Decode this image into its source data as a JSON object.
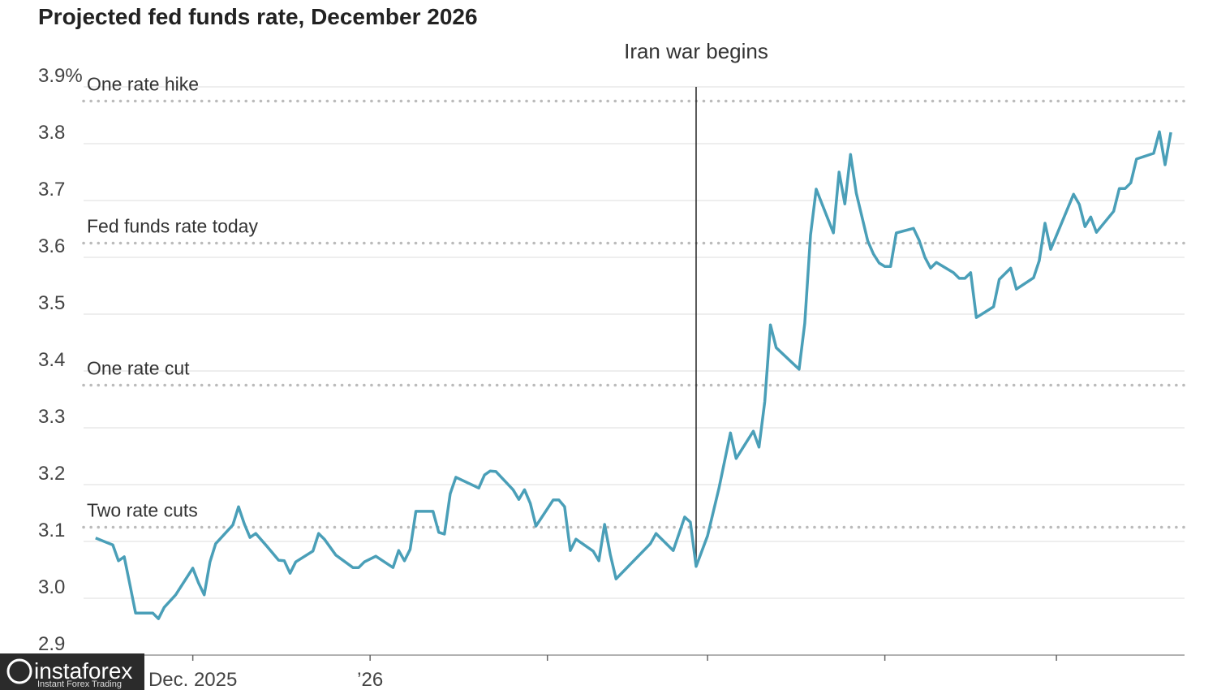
{
  "chart_data": {
    "type": "line",
    "title": "Projected fed funds rate, December 2026",
    "x": [
      -17,
      -14,
      -13,
      -12,
      -11,
      -10,
      -7,
      -6,
      -5,
      -3,
      0,
      1,
      2,
      3,
      4,
      7,
      8,
      9,
      10,
      11,
      13,
      15,
      16,
      17,
      18,
      21,
      22,
      23,
      25,
      28,
      29,
      30,
      32,
      35,
      36,
      37,
      38,
      39,
      42,
      43,
      44,
      45,
      46,
      50,
      51,
      52,
      53,
      56,
      57,
      58,
      59,
      60,
      63,
      64,
      65,
      66,
      67,
      70,
      71,
      72,
      73,
      74,
      80,
      81,
      84,
      86,
      87,
      88,
      90,
      92,
      94,
      95,
      98,
      99,
      100,
      101,
      102,
      106,
      107,
      108,
      109,
      112,
      113,
      114,
      115,
      116,
      118,
      119,
      120,
      121,
      122,
      123,
      126,
      127,
      128,
      129,
      130,
      133,
      134,
      135,
      136,
      137,
      140,
      141,
      143,
      144,
      147,
      148,
      149,
      150,
      154,
      155,
      156,
      157,
      158,
      161,
      162,
      163,
      164,
      165,
      168,
      169,
      170,
      171
    ],
    "series": [
      {
        "color": "#4a9fb8",
        "values": [
          3.106,
          3.094,
          3.066,
          3.073,
          3.024,
          2.974,
          2.974,
          2.964,
          2.984,
          3.006,
          3.053,
          3.027,
          3.006,
          3.064,
          3.096,
          3.129,
          3.161,
          3.131,
          3.107,
          3.114,
          3.091,
          3.067,
          3.066,
          3.044,
          3.064,
          3.083,
          3.114,
          3.104,
          3.076,
          3.054,
          3.054,
          3.064,
          3.074,
          3.054,
          3.084,
          3.066,
          3.086,
          3.153,
          3.153,
          3.116,
          3.113,
          3.184,
          3.213,
          3.194,
          3.217,
          3.224,
          3.223,
          3.191,
          3.174,
          3.191,
          3.167,
          3.127,
          3.173,
          3.173,
          3.161,
          3.084,
          3.104,
          3.083,
          3.066,
          3.13,
          3.077,
          3.034,
          3.096,
          3.114,
          3.084,
          3.143,
          3.134,
          3.056,
          3.11,
          3.194,
          3.291,
          3.246,
          3.294,
          3.266,
          3.346,
          3.481,
          3.441,
          3.403,
          3.484,
          3.639,
          3.72,
          3.643,
          3.75,
          3.694,
          3.781,
          3.713,
          3.629,
          3.606,
          3.59,
          3.584,
          3.584,
          3.643,
          3.651,
          3.63,
          3.6,
          3.581,
          3.591,
          3.573,
          3.563,
          3.563,
          3.573,
          3.494,
          3.513,
          3.561,
          3.581,
          3.544,
          3.564,
          3.594,
          3.66,
          3.614,
          3.711,
          3.693,
          3.654,
          3.671,
          3.644,
          3.681,
          3.721,
          3.721,
          3.731,
          3.773,
          3.783,
          3.821,
          3.763,
          3.82
        ]
      }
    ],
    "xlim": [
      -19.1,
      173.4
    ],
    "xticks": [
      {
        "value": 0,
        "label": "Dec. 2025"
      },
      {
        "value": 31,
        "label": "’26"
      },
      {
        "value": 62,
        "label": null
      },
      {
        "value": 90,
        "label": null
      },
      {
        "value": 121,
        "label": null
      },
      {
        "value": 151,
        "label": null
      }
    ],
    "ylim": [
      2.9,
      3.9
    ],
    "yticks": [
      2.9,
      {
        "value": 3,
        "label": "3.0"
      },
      3.1,
      3.2,
      3.3,
      3.4,
      3.5,
      3.6,
      3.7,
      3.8,
      {
        "value": 3.9,
        "label": "3.9%"
      }
    ],
    "grid": true,
    "reference_lines": [
      {
        "label": "One rate hike",
        "value": 3.875
      },
      {
        "label": "Fed funds rate today",
        "value": 3.625
      },
      {
        "label": "One rate cut",
        "value": 3.375
      },
      {
        "label": "Two rate cuts",
        "value": 3.125
      }
    ],
    "annotations": [
      {
        "text": "Iran war begins",
        "x": 88
      }
    ]
  },
  "watermark": {
    "brand": "instaforex",
    "tagline": "Instant Forex Trading"
  }
}
